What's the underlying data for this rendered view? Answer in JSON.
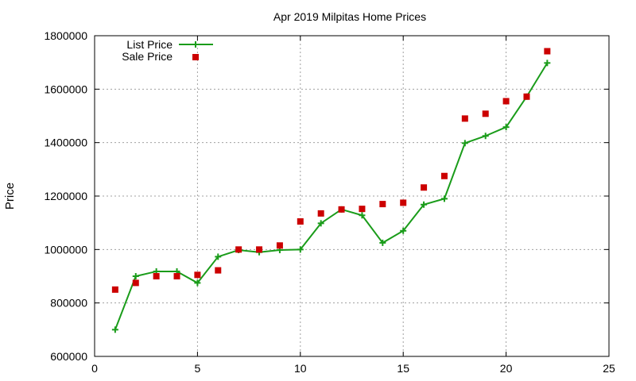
{
  "chart_data": {
    "type": "line",
    "title": "Apr 2019 Milpitas Home Prices",
    "xlabel": "",
    "ylabel": "Price",
    "xlim": [
      0,
      25
    ],
    "ylim": [
      600000,
      1800000
    ],
    "xticks": [
      0,
      5,
      10,
      15,
      20,
      25
    ],
    "yticks": [
      600000,
      800000,
      1000000,
      1200000,
      1400000,
      1600000,
      1800000
    ],
    "grid": true,
    "legend_position": "top-left",
    "x": [
      1,
      2,
      3,
      4,
      5,
      6,
      7,
      8,
      9,
      10,
      11,
      12,
      13,
      14,
      15,
      16,
      17,
      18,
      19,
      20,
      21,
      22
    ],
    "series": [
      {
        "name": "List Price",
        "style": "line-plus",
        "color": "#1a9c1a",
        "values": [
          700000,
          900000,
          918000,
          918000,
          875000,
          973000,
          998000,
          990000,
          998000,
          1000000,
          1098000,
          1150000,
          1128000,
          1025000,
          1070000,
          1168000,
          1190000,
          1398000,
          1425000,
          1458000,
          1572000,
          1698000
        ]
      },
      {
        "name": "Sale Price",
        "style": "square-marker",
        "color": "#cc0000",
        "values": [
          850000,
          875000,
          900000,
          900000,
          905000,
          922000,
          1000000,
          1000000,
          1015000,
          1105000,
          1135000,
          1150000,
          1152000,
          1170000,
          1175000,
          1232000,
          1275000,
          1490000,
          1508000,
          1555000,
          1572000,
          1742000
        ]
      }
    ]
  }
}
